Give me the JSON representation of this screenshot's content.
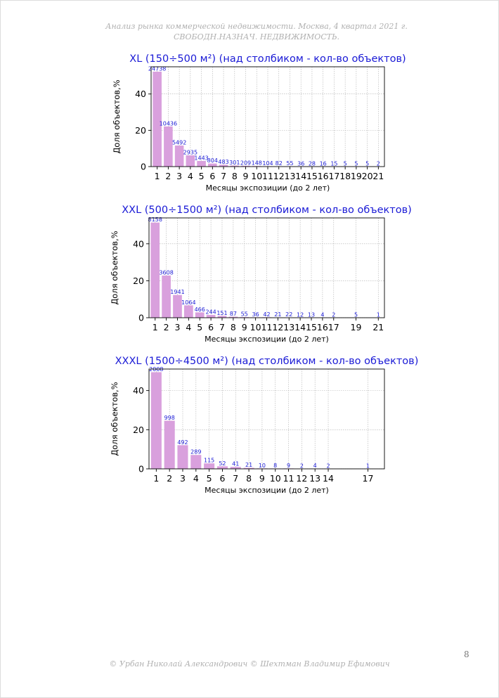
{
  "header": {
    "text": "Анализ рынка коммерческой недвижимости. Москва, 4 квартал 2021 г. СВОБОДН.НАЗНАЧ. НЕДВИЖИМОСТЬ."
  },
  "footer": {
    "text": "© Урбан Николай Александрович © Шехтман Владимир Ефимович"
  },
  "page_number": "8",
  "colors": {
    "bar": "#d9a0dd",
    "title": "#1a1ad6",
    "label": "#1a1ad6",
    "axis": "#000000",
    "grid": "#b0b0b0"
  },
  "chart_data": [
    {
      "type": "bar",
      "title": "XL (150÷500 м²) (над столбиком - кол-во объектов)",
      "xlabel": "Месяцы экспозиции (до 2 лет)",
      "ylabel": "Доля объектов,%",
      "ylim": [
        0,
        55
      ],
      "yticks": [
        0,
        20,
        40
      ],
      "grid": true,
      "categories": [
        "1",
        "2",
        "3",
        "4",
        "5",
        "6",
        "7",
        "8",
        "9",
        "10",
        "11",
        "12",
        "13",
        "14",
        "15",
        "16",
        "17",
        "18",
        "19",
        "20",
        "21"
      ],
      "values": [
        52.3,
        22.1,
        11.6,
        6.2,
        3.1,
        1.7,
        1.0,
        0.6,
        0.44,
        0.31,
        0.22,
        0.17,
        0.12,
        0.08,
        0.06,
        0.03,
        0.03,
        0.01,
        0.01,
        0.01,
        0.01
      ],
      "labels": [
        "24738",
        "10436",
        "5492",
        "2935",
        "1443",
        "804",
        "483",
        "301",
        "209",
        "148",
        "104",
        "82",
        "55",
        "36",
        "28",
        "16",
        "15",
        "5",
        "5",
        "5",
        "2"
      ]
    },
    {
      "type": "bar",
      "title": "XXL (500÷1500 м²) (над столбиком - кол-во объектов)",
      "xlabel": "Месяцы экспозиции (до 2 лет)",
      "ylabel": "Доля объектов,%",
      "ylim": [
        0,
        54
      ],
      "yticks": [
        0,
        20,
        40
      ],
      "grid": true,
      "categories": [
        "1",
        "2",
        "3",
        "4",
        "5",
        "6",
        "7",
        "8",
        "9",
        "10",
        "11",
        "12",
        "13",
        "14",
        "15",
        "16",
        "17",
        "19",
        "21"
      ],
      "x": [
        1,
        2,
        3,
        4,
        5,
        6,
        7,
        8,
        9,
        10,
        11,
        12,
        13,
        14,
        15,
        16,
        17,
        19,
        21
      ],
      "values": [
        51.5,
        22.8,
        12.3,
        6.7,
        2.9,
        1.5,
        1.0,
        0.55,
        0.35,
        0.23,
        0.27,
        0.13,
        0.14,
        0.08,
        0.08,
        0.03,
        0.01,
        0.03,
        0.01
      ],
      "labels": [
        "8158",
        "3608",
        "1941",
        "1064",
        "466",
        "244",
        "151",
        "87",
        "55",
        "36",
        "42",
        "21",
        "22",
        "12",
        "13",
        "4",
        "2",
        "5",
        "1"
      ]
    },
    {
      "type": "bar",
      "title": "XXXL (1500÷4500 м²) (над столбиком - кол-во объектов)",
      "xlabel": "Месяцы экспозиции (до 2 лет)",
      "ylabel": "Доля объектов,%",
      "ylim": [
        0,
        51
      ],
      "yticks": [
        0,
        20,
        40
      ],
      "grid": true,
      "categories": [
        "1",
        "2",
        "3",
        "4",
        "5",
        "6",
        "7",
        "8",
        "9",
        "10",
        "11",
        "12",
        "13",
        "14",
        "17"
      ],
      "x": [
        1,
        2,
        3,
        4,
        5,
        6,
        7,
        8,
        9,
        10,
        11,
        12,
        13,
        14,
        17
      ],
      "values": [
        49.4,
        24.6,
        12.1,
        7.1,
        2.8,
        1.3,
        1.0,
        0.52,
        0.25,
        0.2,
        0.22,
        0.05,
        0.1,
        0.05,
        0.02
      ],
      "labels": [
        "2008",
        "998",
        "492",
        "289",
        "115",
        "52",
        "41",
        "21",
        "10",
        "8",
        "9",
        "2",
        "4",
        "2",
        "1"
      ]
    }
  ]
}
